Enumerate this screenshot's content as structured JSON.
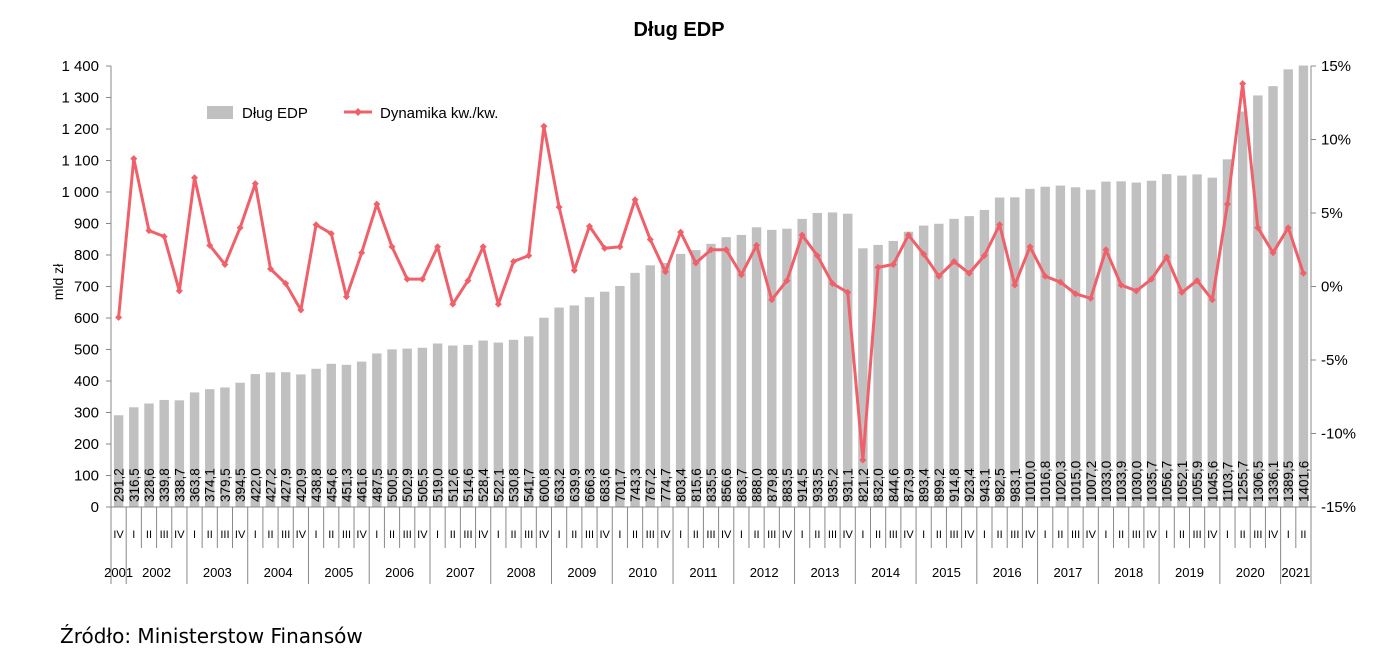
{
  "chart_data": {
    "type": "bar",
    "title": "Dług EDP",
    "ylabel": "mld zł",
    "ylim": [
      0,
      1400
    ],
    "y_ticks": [
      "0",
      "100",
      "200",
      "300",
      "400",
      "500",
      "600",
      "700",
      "800",
      "900",
      "1 000",
      "1 100",
      "1 200",
      "1 300",
      "1 400"
    ],
    "y2lim": [
      -15,
      15
    ],
    "y2_ticks": [
      "-15%",
      "-10%",
      "-5%",
      "0%",
      "5%",
      "10%",
      "15%"
    ],
    "legend_position": "top-left",
    "grid": false,
    "colors": {
      "bars": "#c0c0c0",
      "line": "#f0606a"
    },
    "categories": [
      "IV",
      "I",
      "II",
      "III",
      "IV",
      "I",
      "II",
      "III",
      "IV",
      "I",
      "II",
      "III",
      "IV",
      "I",
      "II",
      "III",
      "IV",
      "I",
      "II",
      "III",
      "IV",
      "I",
      "II",
      "III",
      "IV",
      "I",
      "II",
      "III",
      "IV",
      "I",
      "II",
      "III",
      "IV",
      "I",
      "II",
      "III",
      "IV",
      "I",
      "II",
      "III",
      "IV",
      "I",
      "II",
      "III",
      "IV",
      "I",
      "II",
      "III",
      "IV",
      "I",
      "II",
      "III",
      "IV",
      "I",
      "II",
      "III",
      "IV",
      "I",
      "II",
      "III",
      "IV",
      "I",
      "II",
      "III",
      "IV",
      "I",
      "II",
      "III",
      "IV",
      "I",
      "II",
      "III",
      "IV",
      "I",
      "II",
      "III",
      "IV",
      "I",
      "II"
    ],
    "years": [
      {
        "label": "2001",
        "count": 1
      },
      {
        "label": "2002",
        "count": 4
      },
      {
        "label": "2003",
        "count": 4
      },
      {
        "label": "2004",
        "count": 4
      },
      {
        "label": "2005",
        "count": 4
      },
      {
        "label": "2006",
        "count": 4
      },
      {
        "label": "2007",
        "count": 4
      },
      {
        "label": "2008",
        "count": 4
      },
      {
        "label": "2009",
        "count": 4
      },
      {
        "label": "2010",
        "count": 4
      },
      {
        "label": "2011",
        "count": 4
      },
      {
        "label": "2012",
        "count": 4
      },
      {
        "label": "2013",
        "count": 4
      },
      {
        "label": "2014",
        "count": 4
      },
      {
        "label": "2015",
        "count": 4
      },
      {
        "label": "2016",
        "count": 4
      },
      {
        "label": "2017",
        "count": 4
      },
      {
        "label": "2018",
        "count": 4
      },
      {
        "label": "2019",
        "count": 4
      },
      {
        "label": "2020",
        "count": 4
      },
      {
        "label": "2021",
        "count": 2
      }
    ],
    "series": [
      {
        "name": "Dług EDP",
        "type": "bar",
        "values": [
          291.2,
          316.5,
          328.6,
          339.8,
          338.7,
          363.8,
          374.1,
          379.5,
          394.5,
          422.0,
          427.2,
          427.9,
          420.9,
          438.8,
          454.6,
          451.3,
          461.6,
          487.5,
          500.5,
          502.9,
          505.5,
          519.0,
          512.6,
          514.6,
          528.4,
          522.1,
          530.8,
          541.7,
          600.8,
          633.2,
          639.9,
          666.3,
          683.6,
          701.7,
          743.3,
          767.2,
          774.7,
          803.4,
          815.6,
          835.5,
          856.6,
          863.7,
          888.0,
          879.8,
          883.5,
          914.5,
          933.5,
          935.2,
          931.1,
          821.2,
          832.0,
          844.6,
          873.9,
          893.4,
          899.2,
          914.8,
          923.4,
          943.1,
          982.5,
          983.1,
          1010.0,
          1016.8,
          1020.3,
          1015.0,
          1007.2,
          1033.0,
          1033.9,
          1030.0,
          1035.7,
          1056.7,
          1052.1,
          1055.9,
          1045.6,
          1103.7,
          1255.7,
          1306.5,
          1336.1,
          1389.5,
          1401.6
        ],
        "labels": [
          "291,2",
          "316,5",
          "328,6",
          "339,8",
          "338,7",
          "363,8",
          "374,1",
          "379,5",
          "394,5",
          "422,0",
          "427,2",
          "427,9",
          "420,9",
          "438,8",
          "454,6",
          "451,3",
          "461,6",
          "487,5",
          "500,5",
          "502,9",
          "505,5",
          "519,0",
          "512,6",
          "514,6",
          "528,4",
          "522,1",
          "530,8",
          "541,7",
          "600,8",
          "633,2",
          "639,9",
          "666,3",
          "683,6",
          "701,7",
          "743,3",
          "767,2",
          "774,7",
          "803,4",
          "815,6",
          "835,5",
          "856,6",
          "863,7",
          "888,0",
          "879,8",
          "883,5",
          "914,5",
          "933,5",
          "935,2",
          "931,1",
          "821,2",
          "832,0",
          "844,6",
          "873,9",
          "893,4",
          "899,2",
          "914,8",
          "923,4",
          "943,1",
          "982,5",
          "983,1",
          "1010,0",
          "1016,8",
          "1020,3",
          "1015,0",
          "1007,2",
          "1033,0",
          "1033,9",
          "1030,0",
          "1035,7",
          "1056,7",
          "1052,1",
          "1055,9",
          "1045,6",
          "1103,7",
          "1255,7",
          "1306,5",
          "1336,1",
          "1389,5",
          "1401,6"
        ]
      },
      {
        "name": "Dynamika kw./kw.",
        "type": "line",
        "axis": "right",
        "values": [
          -2.1,
          8.7,
          3.8,
          3.4,
          -0.3,
          7.4,
          2.8,
          1.5,
          4.0,
          7.0,
          1.2,
          0.2,
          -1.6,
          4.2,
          3.6,
          -0.7,
          2.3,
          5.6,
          2.7,
          0.5,
          0.5,
          2.7,
          -1.2,
          0.4,
          2.7,
          -1.2,
          1.7,
          2.1,
          10.9,
          5.4,
          1.1,
          4.1,
          2.6,
          2.7,
          5.9,
          3.2,
          1.0,
          3.7,
          1.6,
          2.5,
          2.5,
          0.8,
          2.8,
          -0.9,
          0.4,
          3.5,
          2.1,
          0.2,
          -0.4,
          -11.8,
          1.3,
          1.5,
          3.5,
          2.2,
          0.7,
          1.7,
          0.9,
          2.1,
          4.2,
          0.1,
          2.7,
          0.7,
          0.3,
          -0.5,
          -0.8,
          2.5,
          0.1,
          -0.3,
          0.5,
          2.0,
          -0.4,
          0.4,
          -0.9,
          5.6,
          13.8,
          4.0,
          2.3,
          4.0,
          0.9
        ]
      }
    ]
  },
  "source": "Źródło: Ministerstow Finansów"
}
